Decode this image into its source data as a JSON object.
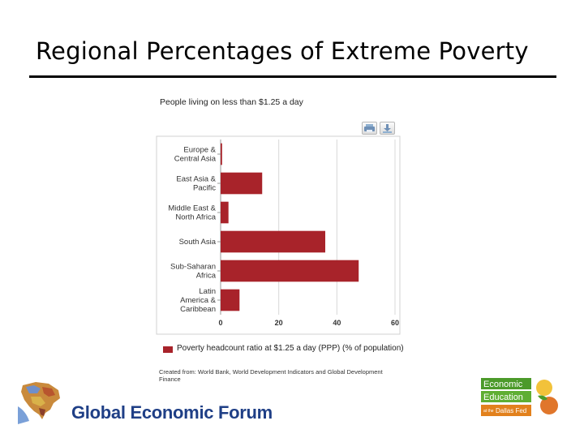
{
  "slide": {
    "title": "Regional Percentages of Extreme Poverty"
  },
  "chart_data": {
    "type": "bar",
    "orientation": "horizontal",
    "title": "People living on less than $1.25 a day",
    "categories": [
      [
        "Europe &",
        "Central Asia"
      ],
      [
        "East Asia &",
        "Pacific"
      ],
      [
        "Middle East &",
        "North Africa"
      ],
      [
        "South Asia"
      ],
      [
        "Sub-Saharan",
        "Africa"
      ],
      [
        "Latin",
        "America &",
        "Caribbean"
      ]
    ],
    "series": [
      {
        "name": "Poverty headcount ratio at $1.25 a day (PPP) (% of population)",
        "values": [
          0.5,
          14.3,
          2.7,
          36.0,
          47.5,
          6.5
        ]
      }
    ],
    "xlim": [
      0,
      60
    ],
    "xticks": [
      "0",
      "20",
      "40",
      "60"
    ],
    "grid": true,
    "legend": "bottom-left",
    "bar_color": "#a8232a"
  },
  "chart_ui": {
    "print_icon": "print-icon",
    "download_icon": "download-icon"
  },
  "credit": "Created from: World Bank, World Development Indicators and Global Development Finance",
  "footer": {
    "forum_name": "Global Economic Forum",
    "edu_logo": {
      "line1": "Economic",
      "line2": "Education",
      "prefix": "at the",
      "line3": "Dallas Fed"
    },
    "colors": {
      "forum_blue": "#1f3f86",
      "edu_green": "#4c9a2a",
      "edu_orange": "#e2811d"
    }
  }
}
